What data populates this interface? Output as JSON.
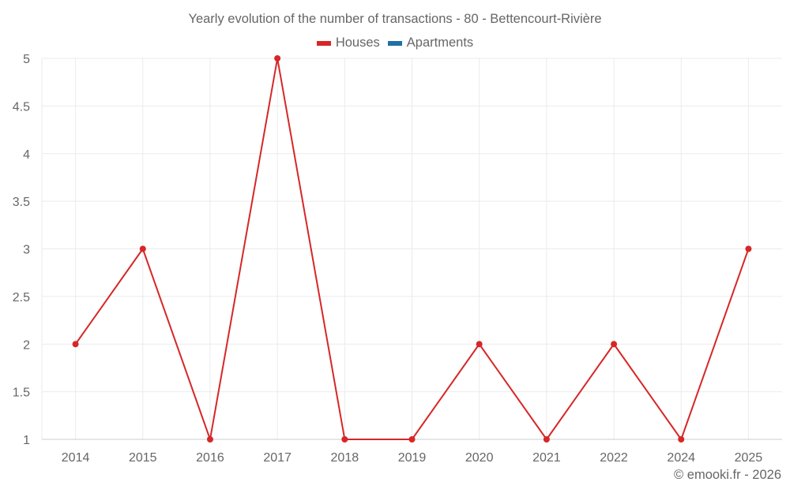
{
  "title": "Yearly evolution of the number of transactions - 80 - Bettencourt-Rivière",
  "legend": [
    {
      "label": "Houses",
      "color": "#d62728"
    },
    {
      "label": "Apartments",
      "color": "#1f6fa8"
    }
  ],
  "credit": "© emooki.fr - 2026",
  "chart_data": {
    "type": "line",
    "title": "Yearly evolution of the number of transactions - 80 - Bettencourt-Rivière",
    "xlabel": "",
    "ylabel": "",
    "categories": [
      "2014",
      "2015",
      "2016",
      "2017",
      "2018",
      "2019",
      "2020",
      "2021",
      "2022",
      "2024",
      "2025"
    ],
    "series": [
      {
        "name": "Houses",
        "color": "#d62728",
        "values": [
          2,
          3,
          1,
          5,
          1,
          1,
          2,
          1,
          2,
          1,
          3
        ]
      },
      {
        "name": "Apartments",
        "color": "#1f6fa8",
        "values": []
      }
    ],
    "ylim": [
      1,
      5
    ],
    "yticks": [
      "1",
      "1.5",
      "2",
      "2.5",
      "3",
      "3.5",
      "4",
      "4.5",
      "5"
    ],
    "grid": true,
    "legend_position": "top"
  }
}
